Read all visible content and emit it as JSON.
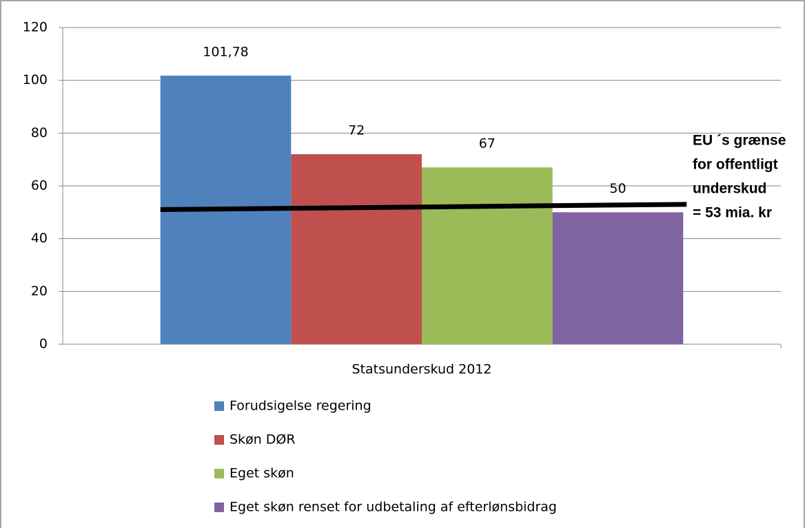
{
  "chart_data": {
    "type": "bar",
    "categories": [
      "Statsunderskud 2012"
    ],
    "series": [
      {
        "name": "Forudsigelse regering",
        "color": "#4f81bd",
        "values": [
          101.78
        ],
        "value_labels": [
          "101,78"
        ]
      },
      {
        "name": "Skøn DØR",
        "color": "#c0504d",
        "values": [
          72
        ]
      },
      {
        "name": "Eget skøn",
        "color": "#9bbb59",
        "values": [
          67
        ]
      },
      {
        "name": "Eget skøn renset for udbetaling af efterlønsbidrag",
        "color": "#8064a2",
        "values": [
          50
        ]
      }
    ],
    "ylim": [
      0,
      120
    ],
    "yticks": [
      0,
      20,
      40,
      60,
      80,
      100,
      120
    ],
    "grid": true,
    "annotation": {
      "text": [
        "EU ´s grænse",
        "for offentligt",
        "underskud",
        "= 53 mia. kr"
      ],
      "line": [
        51,
        53
      ],
      "color": "#000000"
    }
  }
}
